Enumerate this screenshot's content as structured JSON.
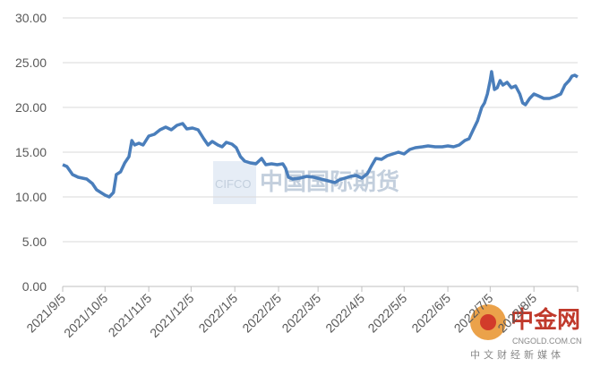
{
  "chart_data": {
    "type": "line",
    "x": [
      "2021/9/5",
      "2021/9/8",
      "2021/9/12",
      "2021/9/16",
      "2021/9/22",
      "2021/9/26",
      "2021/9/29",
      "2021/10/2",
      "2021/10/5",
      "2021/10/8",
      "2021/10/11",
      "2021/10/13",
      "2021/10/16",
      "2021/10/19",
      "2021/10/22",
      "2021/10/24",
      "2021/10/26",
      "2021/10/29",
      "2021/11/1",
      "2021/11/5",
      "2021/11/9",
      "2021/11/13",
      "2021/11/17",
      "2021/11/21",
      "2021/11/25",
      "2021/11/29",
      "2021/12/2",
      "2021/12/6",
      "2021/12/10",
      "2021/12/14",
      "2021/12/17",
      "2021/12/20",
      "2021/12/24",
      "2021/12/27",
      "2021/12/30",
      "2022/1/3",
      "2022/1/6",
      "2022/1/9",
      "2022/1/12",
      "2022/1/16",
      "2022/1/20",
      "2022/1/24",
      "2022/1/27",
      "2022/1/31",
      "2022/2/4",
      "2022/2/8",
      "2022/2/10",
      "2022/2/12",
      "2022/2/15",
      "2022/2/20",
      "2022/2/25",
      "2022/3/2",
      "2022/3/7",
      "2022/3/12",
      "2022/3/17",
      "2022/3/20",
      "2022/3/24",
      "2022/3/28",
      "2022/4/1",
      "2022/4/5",
      "2022/4/9",
      "2022/4/12",
      "2022/4/15",
      "2022/4/19",
      "2022/4/23",
      "2022/4/27",
      "2022/5/1",
      "2022/5/5",
      "2022/5/9",
      "2022/5/13",
      "2022/5/18",
      "2022/5/22",
      "2022/5/27",
      "2022/6/1",
      "2022/6/5",
      "2022/6/9",
      "2022/6/13",
      "2022/6/17",
      "2022/6/20",
      "2022/6/23",
      "2022/6/26",
      "2022/6/29",
      "2022/7/1",
      "2022/7/3",
      "2022/7/5",
      "2022/7/6",
      "2022/7/8",
      "2022/7/10",
      "2022/7/12",
      "2022/7/14",
      "2022/7/17",
      "2022/7/20",
      "2022/7/23",
      "2022/7/26",
      "2022/7/28",
      "2022/7/30",
      "2022/8/2",
      "2022/8/5",
      "2022/8/8",
      "2022/8/12",
      "2022/8/16",
      "2022/8/20",
      "2022/8/24",
      "2022/8/27",
      "2022/8/30",
      "2022/9/1",
      "2022/9/3",
      "2022/9/5"
    ],
    "series": [
      {
        "color": "#4a7ebb",
        "values": [
          13.6,
          13.4,
          12.5,
          12.2,
          12.0,
          11.5,
          10.8,
          10.5,
          10.2,
          10.0,
          10.5,
          12.5,
          12.8,
          13.8,
          14.5,
          16.3,
          15.8,
          16.0,
          15.8,
          16.8,
          17.0,
          17.5,
          17.8,
          17.5,
          18.0,
          18.2,
          17.6,
          17.7,
          17.5,
          16.5,
          15.8,
          16.2,
          15.8,
          15.6,
          16.1,
          15.9,
          15.5,
          14.5,
          14.0,
          13.8,
          13.7,
          14.3,
          13.6,
          13.7,
          13.6,
          13.7,
          13.2,
          12.2,
          12.0,
          12.1,
          12.3,
          12.2,
          12.0,
          11.8,
          11.6,
          11.9,
          12.1,
          12.3,
          12.4,
          12.1,
          12.6,
          13.5,
          14.3,
          14.2,
          14.6,
          14.8,
          15.0,
          14.8,
          15.3,
          15.5,
          15.6,
          15.7,
          15.6,
          15.6,
          15.7,
          15.6,
          15.8,
          16.3,
          16.5,
          17.5,
          18.5,
          20.0,
          20.5,
          21.5,
          23.0,
          24.0,
          22.0,
          22.2,
          23.0,
          22.5,
          22.8,
          22.2,
          22.4,
          21.5,
          20.5,
          20.3,
          21.0,
          21.5,
          21.3,
          21.0,
          21.0,
          21.2,
          21.5,
          22.5,
          23.0,
          23.5,
          23.6,
          23.4
        ]
      }
    ],
    "xlim": [
      "2021/9/5",
      "2022/9/5"
    ],
    "xticks": [
      {
        "value": "2021/9/5",
        "label": "2021/9/5"
      },
      {
        "value": "2021/10/5",
        "label": "2021/10/5"
      },
      {
        "value": "2021/11/5",
        "label": "2021/11/5"
      },
      {
        "value": "2021/12/5",
        "label": "2021/12/5"
      },
      {
        "value": "2022/1/5",
        "label": "2022/1/5"
      },
      {
        "value": "2022/2/5",
        "label": "2022/2/5"
      },
      {
        "value": "2022/3/5",
        "label": "2022/3/5"
      },
      {
        "value": "2022/4/5",
        "label": "2022/4/5"
      },
      {
        "value": "2022/5/5",
        "label": "2022/5/5"
      },
      {
        "value": "2022/6/5",
        "label": "2022/6/5"
      },
      {
        "value": "2022/7/5",
        "label": "2022/7/5"
      },
      {
        "value": "2022/8/5",
        "label": "2022/8/5"
      }
    ],
    "ylim": [
      0,
      30
    ],
    "yticks": [
      {
        "value": 0,
        "label": "0.00"
      },
      {
        "value": 5,
        "label": "5.00"
      },
      {
        "value": 10,
        "label": "10.00"
      },
      {
        "value": 15,
        "label": "15.00"
      },
      {
        "value": 20,
        "label": "20.00"
      },
      {
        "value": 25,
        "label": "25.00"
      },
      {
        "value": 30,
        "label": "30.00"
      }
    ],
    "grid": true,
    "watermarks": [
      "CIFCO",
      "中国国际期货",
      "中金网",
      "CNGOLD.COM.CN",
      "中文财经新媒体"
    ]
  }
}
